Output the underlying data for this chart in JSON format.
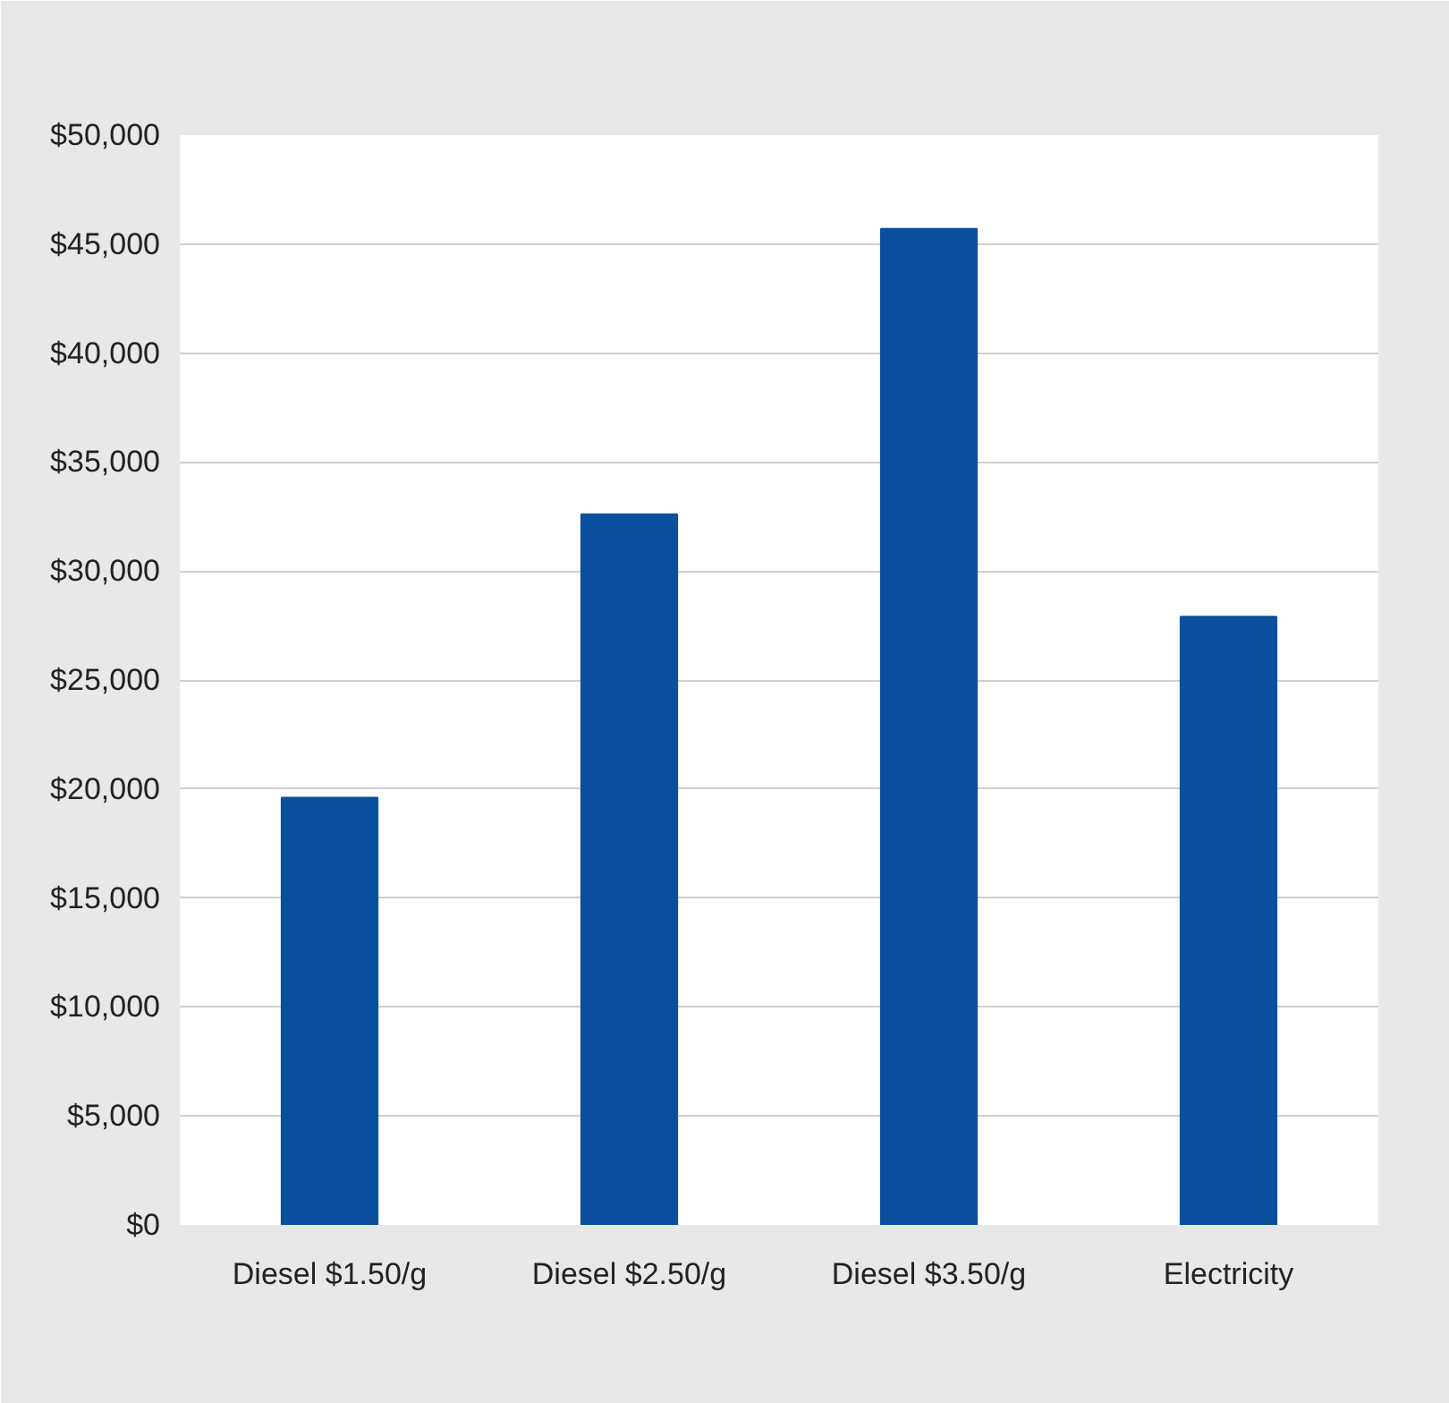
{
  "chart_data": {
    "type": "bar",
    "categories": [
      "Diesel $1.50/g",
      "Diesel $2.50/g",
      "Diesel $3.50/g",
      "Electricity"
    ],
    "values": [
      19600,
      32600,
      45700,
      27900
    ],
    "color": "#0b4f9e",
    "ylim": [
      0,
      50000
    ],
    "yticks": [
      {
        "value": 0,
        "label": "$0"
      },
      {
        "value": 5000,
        "label": "$5,000"
      },
      {
        "value": 10000,
        "label": "$10,000"
      },
      {
        "value": 15000,
        "label": "$15,000"
      },
      {
        "value": 20000,
        "label": "$20,000"
      },
      {
        "value": 25000,
        "label": "$25,000"
      },
      {
        "value": 30000,
        "label": "$30,000"
      },
      {
        "value": 35000,
        "label": "$35,000"
      },
      {
        "value": 40000,
        "label": "$40,000"
      },
      {
        "value": 45000,
        "label": "$45,000"
      },
      {
        "value": 50000,
        "label": "$50,000"
      }
    ],
    "grid": "y"
  }
}
